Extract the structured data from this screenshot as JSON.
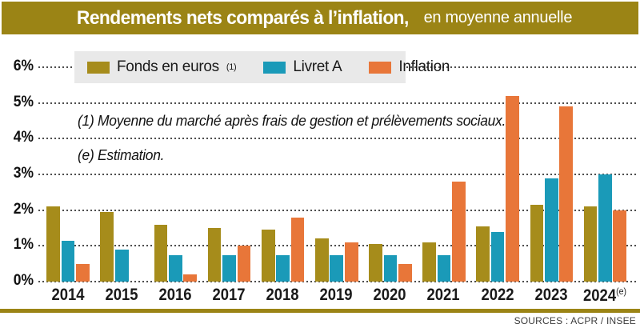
{
  "header": {
    "title_bold": "Rendements nets comparés à l’inflation,",
    "title_regular": "en moyenne annuelle"
  },
  "legend": {
    "items": [
      {
        "label": "Fonds en euros",
        "sup": "(1)",
        "color": "#A68C1B"
      },
      {
        "label": "Livret A",
        "sup": "",
        "color": "#1A9AB8"
      },
      {
        "label": "Inflation",
        "sup": "",
        "color": "#E87639"
      }
    ]
  },
  "notes": {
    "note1": "(1) Moyenne du marché après frais de gestion et prélèvements sociaux.",
    "note2": "(e) Estimation."
  },
  "y_axis": {
    "tick_labels": [
      "6%",
      "5%",
      "4%",
      "3%",
      "2%",
      "1%",
      "0%"
    ]
  },
  "footer": {
    "source": "SOURCES : ACPR / INSEE"
  },
  "chart_data": {
    "type": "bar",
    "title": "Rendements nets comparés à l’inflation, en moyenne annuelle",
    "categories": [
      "2014",
      "2015",
      "2016",
      "2017",
      "2018",
      "2019",
      "2020",
      "2021",
      "2022",
      "2023",
      "2024"
    ],
    "category_superscripts": [
      "",
      "",
      "",
      "",
      "",
      "",
      "",
      "",
      "",
      "",
      "(e)"
    ],
    "series": [
      {
        "name": "Fonds en euros",
        "sup": "(1)",
        "color": "#A68C1B",
        "values": [
          2.1,
          1.95,
          1.6,
          1.5,
          1.45,
          1.2,
          1.05,
          1.1,
          1.55,
          2.15,
          2.1
        ]
      },
      {
        "name": "Livret A",
        "sup": "",
        "color": "#1A9AB8",
        "values": [
          1.15,
          0.9,
          0.75,
          0.75,
          0.75,
          0.75,
          0.75,
          0.75,
          1.4,
          2.9,
          3.0
        ]
      },
      {
        "name": "Inflation",
        "sup": "",
        "color": "#E87639",
        "values": [
          0.5,
          0,
          0.2,
          1.0,
          1.8,
          1.1,
          0.5,
          2.8,
          5.2,
          4.9,
          2.0
        ]
      }
    ],
    "unit": "%",
    "ylim": [
      0,
      6
    ],
    "ytick_step": 1,
    "grid": "dotted-horizontal",
    "legend_position": "top-left-inside"
  }
}
